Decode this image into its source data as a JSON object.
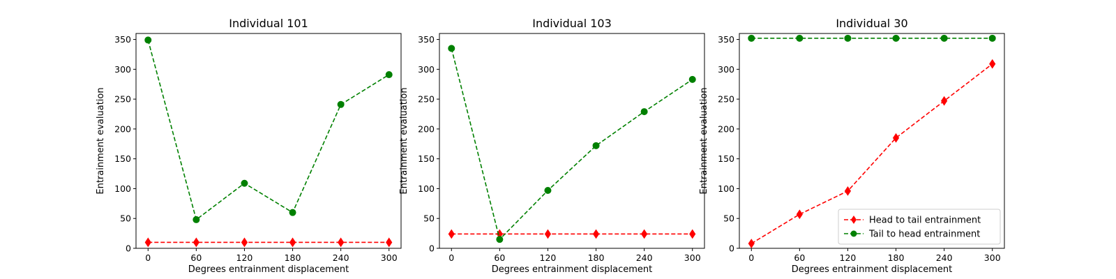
{
  "chart_data": [
    {
      "type": "line",
      "title": "Individual 101",
      "xlabel": "Degrees entrainment displacement",
      "ylabel": "Entrainment evaluation",
      "x": [
        0,
        60,
        120,
        180,
        240,
        300
      ],
      "xticks": [
        "0",
        "60",
        "120",
        "180",
        "240",
        "300"
      ],
      "yticks": [
        "0",
        "50",
        "100",
        "150",
        "200",
        "250",
        "300",
        "350"
      ],
      "xlim": [
        -15,
        315
      ],
      "ylim": [
        0,
        360
      ],
      "series": [
        {
          "name": "Head to tail entrainment",
          "color": "#ff0000",
          "marker": "diamond",
          "linestyle": "dashed",
          "values": [
            10,
            10,
            10,
            10,
            10,
            10
          ]
        },
        {
          "name": "Tail to head entrainment",
          "color": "#008000",
          "marker": "circle",
          "linestyle": "dashed",
          "values": [
            349,
            48,
            109,
            60,
            241,
            291
          ]
        }
      ],
      "legend": null,
      "grid": false
    },
    {
      "type": "line",
      "title": "Individual 103",
      "xlabel": "Degrees entrainment displacement",
      "ylabel": "Entrainment evaluation",
      "x": [
        0,
        60,
        120,
        180,
        240,
        300
      ],
      "xticks": [
        "0",
        "60",
        "120",
        "180",
        "240",
        "300"
      ],
      "yticks": [
        "0",
        "50",
        "100",
        "150",
        "200",
        "250",
        "300",
        "350"
      ],
      "xlim": [
        -15,
        315
      ],
      "ylim": [
        0,
        360
      ],
      "series": [
        {
          "name": "Head to tail entrainment",
          "color": "#ff0000",
          "marker": "diamond",
          "linestyle": "dashed",
          "values": [
            24,
            24,
            24,
            24,
            24,
            24
          ]
        },
        {
          "name": "Tail to head entrainment",
          "color": "#008000",
          "marker": "circle",
          "linestyle": "dashed",
          "values": [
            335,
            15,
            97,
            172,
            229,
            283
          ]
        }
      ],
      "legend": null,
      "grid": false
    },
    {
      "type": "line",
      "title": "Individual 30",
      "xlabel": "Degrees entrainment displacement",
      "ylabel": "Entrainment evaluation",
      "x": [
        0,
        60,
        120,
        180,
        240,
        300
      ],
      "xticks": [
        "0",
        "60",
        "120",
        "180",
        "240",
        "300"
      ],
      "yticks": [
        "0",
        "50",
        "100",
        "150",
        "200",
        "250",
        "300",
        "350"
      ],
      "xlim": [
        -15,
        315
      ],
      "ylim": [
        0,
        360
      ],
      "series": [
        {
          "name": "Head to tail entrainment",
          "color": "#ff0000",
          "marker": "diamond",
          "linestyle": "dashed",
          "values": [
            8,
            57,
            96,
            185,
            247,
            309
          ]
        },
        {
          "name": "Tail to head entrainment",
          "color": "#008000",
          "marker": "circle",
          "linestyle": "dashed",
          "values": [
            352,
            352,
            352,
            352,
            352,
            352
          ]
        }
      ],
      "legend": "lower-right",
      "grid": false
    }
  ]
}
